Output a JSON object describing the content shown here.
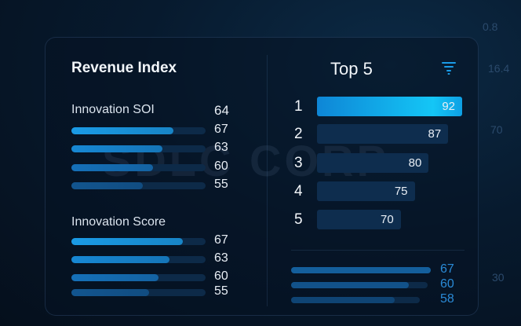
{
  "background": {
    "numbers": [
      "0.8",
      "16.4",
      "70",
      "30"
    ],
    "watermark": "SDLC CORP"
  },
  "left": {
    "title": "Revenue Index",
    "section1": {
      "label": "Innovation SOI",
      "value": "64",
      "bars": [
        {
          "value": "67",
          "fill": 0.76
        },
        {
          "value": "63",
          "fill": 0.68
        },
        {
          "value": "60",
          "fill": 0.61
        },
        {
          "value": "55",
          "fill": 0.53
        }
      ]
    },
    "section2": {
      "label": "Innovation Score",
      "bars": [
        {
          "value": "67",
          "fill": 0.83
        },
        {
          "value": "63",
          "fill": 0.73
        },
        {
          "value": "60",
          "fill": 0.65
        },
        {
          "value": "55",
          "fill": 0.58
        }
      ]
    }
  },
  "right": {
    "title": "Top 5",
    "filter_icon": "filter-icon",
    "items": [
      {
        "rank": "1",
        "value": "92"
      },
      {
        "rank": "2",
        "value": "87"
      },
      {
        "rank": "3",
        "value": "80"
      },
      {
        "rank": "4",
        "value": "75"
      },
      {
        "rank": "5",
        "value": "70"
      }
    ],
    "bottom": [
      {
        "value": "67",
        "fill": 1.0
      },
      {
        "value": "60",
        "fill": 0.84
      },
      {
        "value": "58",
        "fill": 0.74
      }
    ]
  },
  "colors": {
    "accent": "#14c6f6",
    "bar": "#1a8ee0",
    "secondary_value": "#2a8ad6"
  }
}
